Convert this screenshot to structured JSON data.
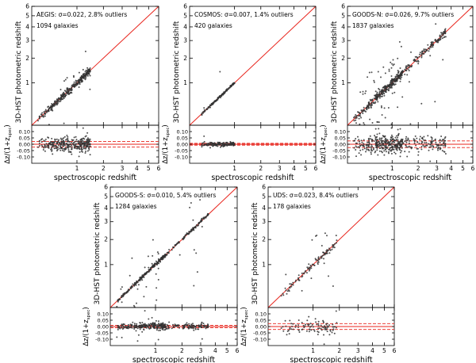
{
  "figure": {
    "xlabel": "spectroscopic redshift",
    "ylabel": "3D-HST photometric redshift",
    "resid_ylabel_main": "Δz/(1+z",
    "resid_ylabel_sub": "spec",
    "resid_ylabel_close": ")",
    "point_color": "#333333",
    "line_color": "#e8241c",
    "axis_color": "#000000"
  },
  "chart_data": [
    {
      "type": "scatter",
      "field": "AEGIS",
      "title": "AEGIS: σ=0.022, 2.8% outliers",
      "subtitle": "1094 galaxies",
      "xlabel": "spectroscopic redshift",
      "ylabel": "3D-HST photometric redshift",
      "scale": "log(1+z)",
      "xlim": [
        0,
        6
      ],
      "ylim": [
        0,
        6
      ],
      "tick_labels": [
        "1",
        "2",
        "3",
        "4",
        "5",
        "6"
      ],
      "resid_ylabel": "Δz/(1+zspec)",
      "resid_ylim": [
        -0.15,
        0.15
      ],
      "resid_tick_labels": [
        "0.10",
        "0.05",
        "0.00",
        "-0.05",
        "-0.10"
      ],
      "sigma": 0.022,
      "outlier_fraction": 0.028,
      "n_galaxies": 1094,
      "z_range_spec": [
        0.1,
        1.45
      ],
      "n_plot_points": 320
    },
    {
      "type": "scatter",
      "field": "COSMOS",
      "title": "COSMOS: σ=0.007, 1.4% outliers",
      "subtitle": "420 galaxies",
      "xlabel": "spectroscopic redshift",
      "ylabel": "3D-HST photometric redshift",
      "scale": "log(1+z)",
      "xlim": [
        0,
        6
      ],
      "ylim": [
        0,
        6
      ],
      "tick_labels": [
        "1",
        "2",
        "3",
        "4",
        "5",
        "6"
      ],
      "resid_ylabel": "Δz/(1+zspec)",
      "resid_ylim": [
        -0.15,
        0.15
      ],
      "resid_tick_labels": [
        "0.10",
        "0.05",
        "0.00",
        "-0.05",
        "-0.10"
      ],
      "sigma": 0.007,
      "outlier_fraction": 0.014,
      "n_galaxies": 420,
      "z_range_spec": [
        0.2,
        1.0
      ],
      "n_plot_points": 150
    },
    {
      "type": "scatter",
      "field": "GOODS-N",
      "title": "GOODS-N: σ=0.026, 9.7% outliers",
      "subtitle": "1837 galaxies",
      "xlabel": "spectroscopic redshift",
      "ylabel": "3D-HST photometric redshift",
      "scale": "log(1+z)",
      "xlim": [
        0,
        6
      ],
      "ylim": [
        0,
        6
      ],
      "tick_labels": [
        "1",
        "2",
        "3",
        "4",
        "5",
        "6"
      ],
      "resid_ylabel": "Δz/(1+zspec)",
      "resid_ylim": [
        -0.15,
        0.15
      ],
      "resid_tick_labels": [
        "0.10",
        "0.05",
        "0.00",
        "-0.05",
        "-0.10"
      ],
      "sigma": 0.026,
      "outlier_fraction": 0.097,
      "n_galaxies": 1837,
      "z_range_spec": [
        0.1,
        3.6
      ],
      "n_plot_points": 480
    },
    {
      "type": "scatter",
      "field": "GOODS-S",
      "title": "GOODS-S: σ=0.010, 5.4% outliers",
      "subtitle": "1284 galaxies",
      "xlabel": "spectroscopic redshift",
      "ylabel": "3D-HST photometric redshift",
      "scale": "log(1+z)",
      "xlim": [
        0,
        6
      ],
      "ylim": [
        0,
        6
      ],
      "tick_labels": [
        "1",
        "2",
        "3",
        "4",
        "5",
        "6"
      ],
      "resid_ylabel": "Δz/(1+zspec)",
      "resid_ylim": [
        -0.15,
        0.15
      ],
      "resid_tick_labels": [
        "0.10",
        "0.05",
        "0.00",
        "-0.05",
        "-0.10"
      ],
      "sigma": 0.01,
      "outlier_fraction": 0.054,
      "n_galaxies": 1284,
      "z_range_spec": [
        0.1,
        3.5
      ],
      "n_plot_points": 380
    },
    {
      "type": "scatter",
      "field": "UDS",
      "title": "UDS: σ=0.023, 8.4% outliers",
      "subtitle": "178 galaxies",
      "xlabel": "spectroscopic redshift",
      "ylabel": "3D-HST photometric redshift",
      "scale": "log(1+z)",
      "xlim": [
        0,
        6
      ],
      "ylim": [
        0,
        6
      ],
      "tick_labels": [
        "1",
        "2",
        "3",
        "4",
        "5",
        "6"
      ],
      "resid_ylabel": "Δz/(1+zspec)",
      "resid_ylim": [
        -0.15,
        0.15
      ],
      "resid_tick_labels": [
        "0.10",
        "0.05",
        "0.00",
        "-0.05",
        "-0.10"
      ],
      "sigma": 0.023,
      "outlier_fraction": 0.084,
      "n_galaxies": 178,
      "z_range_spec": [
        0.2,
        1.9
      ],
      "n_plot_points": 110
    }
  ]
}
